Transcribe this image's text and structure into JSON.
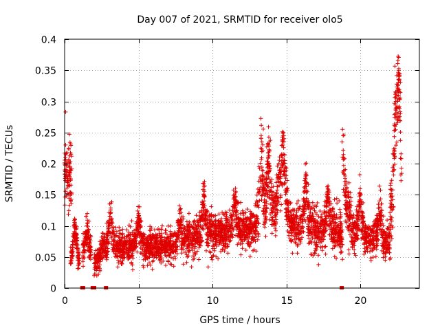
{
  "chart_data": {
    "type": "scatter",
    "title": "Day 007 of 2021, SRMTID for receiver olo5",
    "xlabel": "GPS time / hours",
    "ylabel": "SRMTID / TECUs",
    "xlim": [
      0,
      24
    ],
    "ylim": [
      0,
      0.4
    ],
    "x_ticks": [
      0,
      5,
      10,
      15,
      20
    ],
    "y_ticks": [
      0,
      0.05,
      0.1,
      0.15,
      0.2,
      0.25,
      0.3,
      0.35,
      0.4
    ],
    "y_tick_labels": [
      "0",
      "0.05",
      "0.1",
      "0.15",
      "0.2",
      "0.25",
      "0.3",
      "0.35",
      "0.4"
    ],
    "grid": true,
    "marker": "+",
    "color": "#e00000",
    "segments": [
      {
        "start": 0.0,
        "end": 0.5,
        "level_start": 0.15,
        "level_end": 0.12,
        "spread": 0.035,
        "peaks": [
          [
            0.05,
            0.21
          ],
          [
            0.35,
            0.2
          ]
        ]
      },
      {
        "start": 0.4,
        "end": 1.0,
        "level_start": 0.045,
        "level_end": 0.04,
        "spread": 0.012,
        "peaks": [
          [
            0.7,
            0.11
          ]
        ]
      },
      {
        "start": 1.2,
        "end": 1.8,
        "level_start": 0.055,
        "level_end": 0.06,
        "spread": 0.018,
        "peaks": [
          [
            1.5,
            0.1
          ]
        ]
      },
      {
        "start": 2.0,
        "end": 2.8,
        "level_start": 0.04,
        "level_end": 0.05,
        "spread": 0.014,
        "peaks": [
          [
            2.6,
            0.08
          ]
        ]
      },
      {
        "start": 2.8,
        "end": 8.0,
        "level_start": 0.065,
        "level_end": 0.07,
        "spread": 0.02,
        "peaks": [
          [
            3.1,
            0.12
          ],
          [
            5.0,
            0.12
          ],
          [
            7.8,
            0.12
          ]
        ]
      },
      {
        "start": 8.0,
        "end": 13.0,
        "level_start": 0.08,
        "level_end": 0.1,
        "spread": 0.025,
        "peaks": [
          [
            9.4,
            0.15
          ],
          [
            11.5,
            0.15
          ]
        ]
      },
      {
        "start": 13.0,
        "end": 15.3,
        "level_start": 0.11,
        "level_end": 0.12,
        "spread": 0.035,
        "peaks": [
          [
            13.3,
            0.245
          ],
          [
            13.8,
            0.23
          ],
          [
            14.5,
            0.2
          ],
          [
            14.8,
            0.25
          ]
        ]
      },
      {
        "start": 15.3,
        "end": 18.8,
        "level_start": 0.1,
        "level_end": 0.09,
        "spread": 0.028,
        "peaks": [
          [
            16.3,
            0.18
          ],
          [
            17.8,
            0.16
          ]
        ]
      },
      {
        "start": 18.8,
        "end": 19.4,
        "level_start": 0.13,
        "level_end": 0.12,
        "spread": 0.035,
        "peaks": [
          [
            18.8,
            0.255
          ]
        ]
      },
      {
        "start": 19.4,
        "end": 22.0,
        "level_start": 0.09,
        "level_end": 0.07,
        "spread": 0.022,
        "peaks": [
          [
            20.0,
            0.16
          ],
          [
            21.3,
            0.14
          ]
        ]
      },
      {
        "start": 22.0,
        "end": 22.8,
        "level_start": 0.12,
        "level_end": 0.13,
        "spread": 0.05,
        "peaks": [
          [
            22.4,
            0.3
          ],
          [
            22.6,
            0.35
          ],
          [
            22.55,
            0.32
          ]
        ]
      }
    ],
    "baseline_markers": [
      1.2,
      1.25,
      1.9,
      1.95,
      2.0,
      2.8,
      18.75
    ]
  }
}
